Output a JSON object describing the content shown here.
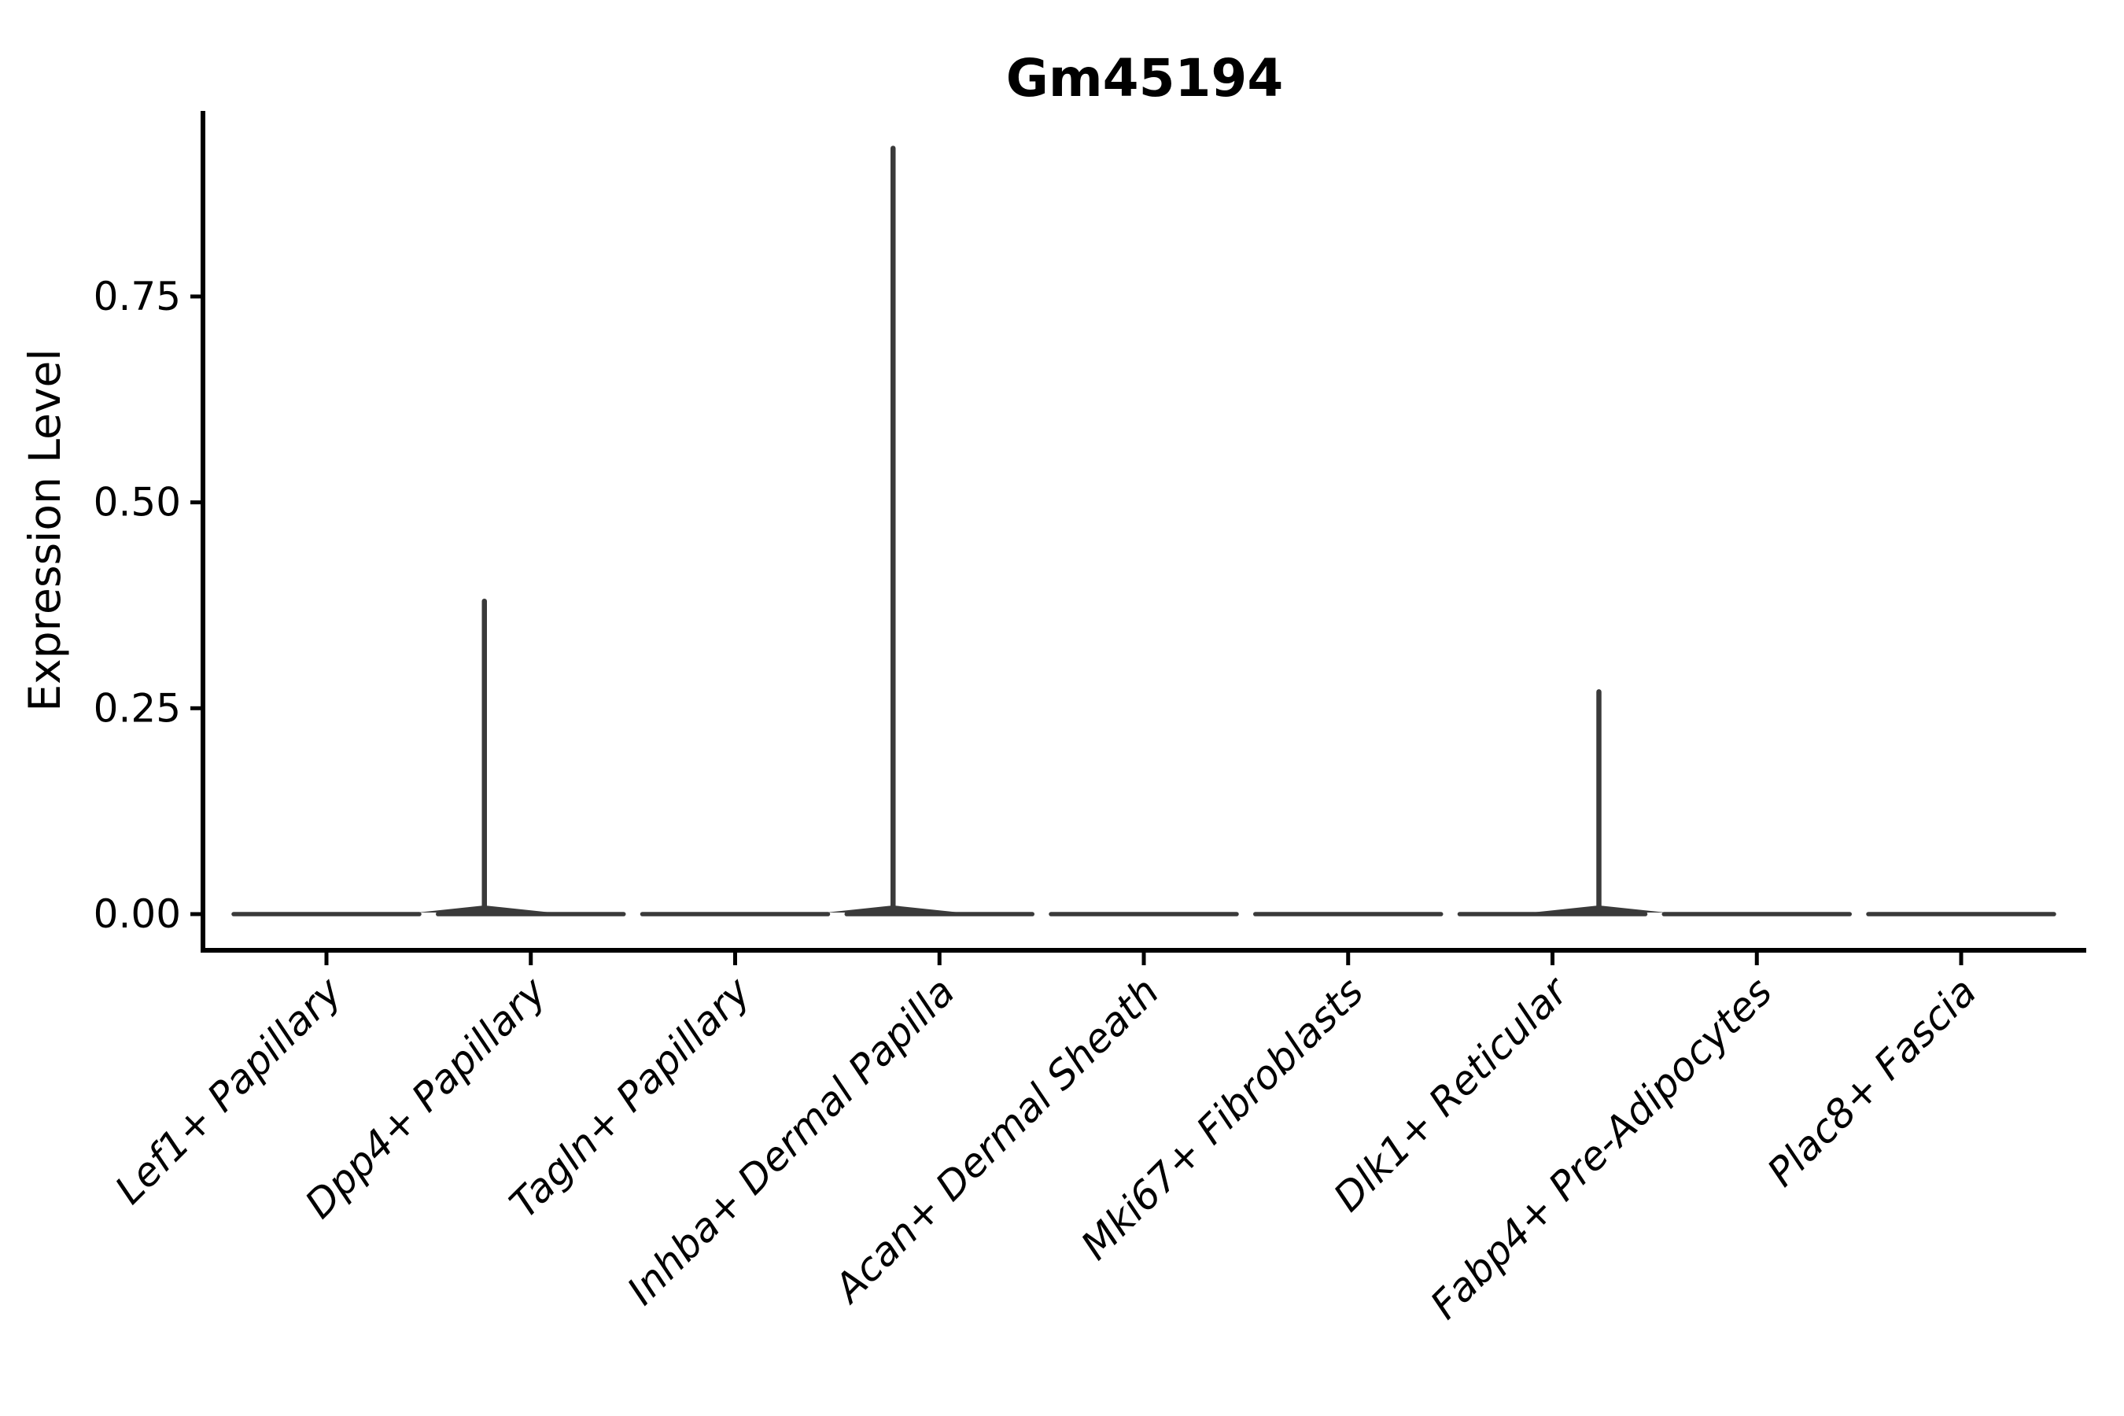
{
  "title": "Gm45194",
  "y_axis": {
    "label": "Expression Level",
    "tick_labels": [
      "0.00",
      "0.25",
      "0.50",
      "0.75"
    ],
    "tick_values": [
      0,
      0.25,
      0.5,
      0.75
    ]
  },
  "x_axis": {
    "categories": [
      "Lef1+ Papillary",
      "Dpp4+ Papillary",
      "Tagln+ Papillary",
      "Inhba+ Dermal Papilla",
      "Acan+ Dermal Sheath",
      "Mki67+ Fibroblasts",
      "Dlk1+ Reticular",
      "Fabp4+ Pre-Adipocytes",
      "Plac8+ Fascia"
    ]
  },
  "colors": {
    "background": "#ffffff",
    "axis": "#000000",
    "text": "#000000",
    "violin_outline": "#3a3a3a"
  },
  "chart_data": {
    "type": "violin",
    "title": "Gm45194",
    "xlabel": "",
    "ylabel": "Expression Level",
    "categories": [
      "Lef1+ Papillary",
      "Dpp4+ Papillary",
      "Tagln+ Papillary",
      "Inhba+ Dermal Papilla",
      "Acan+ Dermal Sheath",
      "Mki67+ Fibroblasts",
      "Dlk1+ Reticular",
      "Fabp4+ Pre-Adipocytes",
      "Plac8+ Fascia"
    ],
    "series": [
      {
        "name": "Expression Level",
        "baseline_value": 0,
        "max_values": [
          0,
          0.38,
          0,
          0.93,
          0,
          0,
          0.27,
          0,
          0
        ]
      }
    ],
    "spike_offsets_frac": [
      0,
      -0.5,
      0,
      -0.5,
      0,
      0,
      0.5,
      0,
      0
    ],
    "ylim": [
      0,
      0.98
    ],
    "yticks": [
      0,
      0.25,
      0.5,
      0.75
    ],
    "ytick_labels": [
      "0.00",
      "0.25",
      "0.50",
      "0.75"
    ],
    "grid": false,
    "legend": "none"
  }
}
